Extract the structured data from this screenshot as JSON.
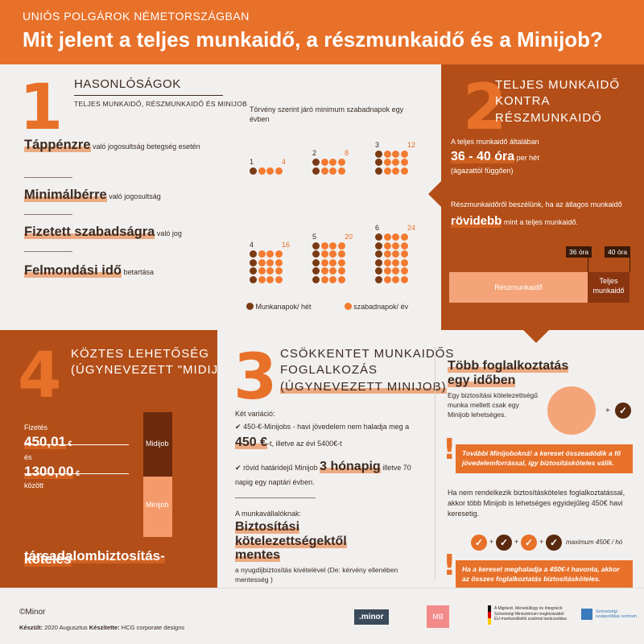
{
  "header": {
    "kicker": "UNIÓS POLGÁROK NÉMETORSZÁGBAN",
    "title": "Mit jelent a teljes munkaidő, a részmunkaidő és a Minijob?"
  },
  "s1": {
    "num": "1",
    "title": "HASONLÓSÁGOK",
    "subtitle": "TELJES MUNKAIDŐ, RÉSZMUNKAIDŐ ÉS MINIJOB",
    "items": [
      {
        "bold": "Táppénzre",
        "rest": "való jogosultság betegség esetén"
      },
      {
        "bold": "Minimálbérre",
        "rest": "való jogosultság"
      },
      {
        "bold": "Fizetett szabadságra",
        "rest": "való jog"
      },
      {
        "bold": "Felmondási idő",
        "rest": "betartása"
      }
    ],
    "chart_title": "Törvény szerint járó minimum szabadnapok egy évben",
    "legend_work": "Munkanapok/ hét",
    "legend_free": "szabadnapok/ év"
  },
  "chart_data": {
    "type": "table",
    "title": "Törvény szerint járó minimum szabadnapok egy évben",
    "series": [
      {
        "name": "Munkanapok/ hét",
        "values": [
          1,
          2,
          3,
          4,
          5,
          6
        ]
      },
      {
        "name": "szabadnapok/ év",
        "values": [
          4,
          8,
          12,
          16,
          20,
          24
        ]
      }
    ]
  },
  "s2": {
    "num": "2",
    "title_line1": "TELJES MUNKAIDŐ",
    "title_line2": "KONTRA RÉSZMUNKAIDŐ",
    "p1_a": "A teljes munkaidő általában",
    "p1_big": "36 - 40 óra",
    "p1_b": "per hét",
    "p1_c": "(ágazattól függően)",
    "p2_a": "Részmunkaidőről beszélünk, ha az átlagos munkaidő",
    "p2_big": "rövidebb",
    "p2_b": "mint a teljes munkaidő.",
    "tag36": "36 óra",
    "tag40": "40 óra",
    "bar_part": "Részmunkaidő",
    "bar_full": "Teljes munkaidő",
    "colors": {
      "dark": "#b34e18",
      "accent": "#e8712a",
      "light": "#f4a478"
    }
  },
  "s4": {
    "num": "4",
    "title_line1": "KÖZTES LEHETŐSÉG",
    "title_line2": "(ÚGYNEVEZETT \"MIDIJOB\")",
    "fizetes": "Fizetés",
    "v1": "450,01",
    "es": "és",
    "v2": "1300,00",
    "kozott": "között",
    "euro": "€",
    "midijob": "Midijob",
    "minijob": "Minijob",
    "footer_line1": "társadalombiztosítás-",
    "footer_line2": "köteles"
  },
  "s3": {
    "num": "3",
    "title_line1": "CSÖKKENTET MUNKAIDŐS",
    "title_line2": "FOGLALKOZÁS",
    "title_line3": "(ÚGYNEVEZETT MINIJOB)",
    "var_label": "Két variáció:",
    "v1_a": "450-€-Minijobs - havi jövedelem nem haladja meg a",
    "v1_big": "450 €",
    "v1_b": "-t, illetve az évi 5400€-t",
    "v2_a": "rövid határidejű Minijob",
    "v2_big": "3 hónapig",
    "v2_b": "illetve 70 napig egy naptári évben.",
    "worker_label": "A munkavállalóknak:",
    "worker_big1": "Biztosítási",
    "worker_big2": "kötelezettségektől",
    "worker_big3": "mentes",
    "worker_note": "a nyugdíjbiztosítás kivételével (De: kérvény ellenében mentesség )",
    "right_title1": "Több foglalkoztatás",
    "right_title2": "egy időben",
    "right_p1": "Egy biztosítási kötelezettségű munka mellett csak egy Minijob lehetséges.",
    "warn1": "További Minijobokná! a kereset összeadódik a fő jövedelemforrással, így biztosításköteles válik.",
    "right_p2": "Ha nem rendelkezik biztosításköteles foglalkoztatással, akkor több Minijob is lehetséges egyidejűleg 450€ havi keresetig.",
    "max_label": "maximum 450€ / hó",
    "warn2": "Ha a kereset meghaladja a 450€-t havonta, akkor az összes foglalkoztatás biztosításköteles."
  },
  "footer": {
    "copyright": "©Minor",
    "credit_a": "Készült:",
    "credit_b": "2020 Augusztus",
    "credit_c": "Készítette:",
    "credit_d": "HCG corporate designs",
    "logo1": ".minor",
    "logo2": "MB",
    "logo3_a": "A Migráció, Menekültügy és Integráció",
    "logo3_b": "Szövetségi Minisztérium megbízásából",
    "logo3_c": "EU-munkavállalók szakmai tanácsadása",
    "logo4": "Szövetségi szakpolitikai centrum"
  }
}
